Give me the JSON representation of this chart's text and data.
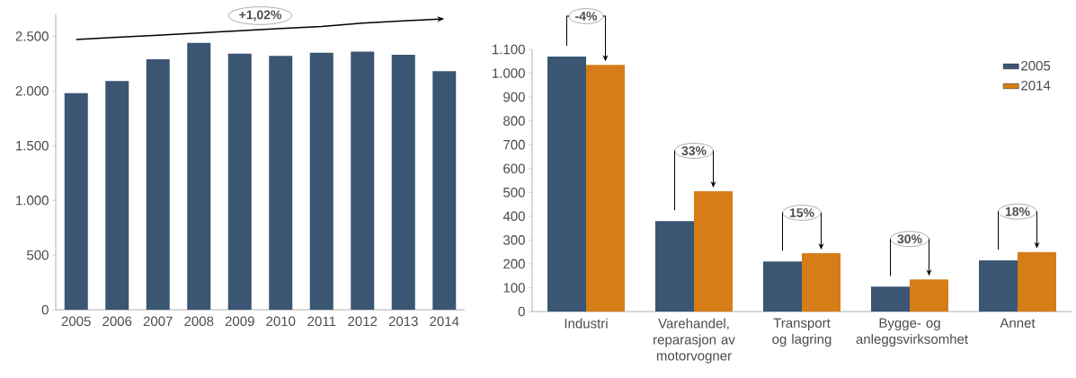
{
  "chart_data": [
    {
      "type": "bar",
      "categories": [
        "2005",
        "2006",
        "2007",
        "2008",
        "2009",
        "2010",
        "2011",
        "2012",
        "2013",
        "2014"
      ],
      "series": [
        {
          "color": "#3a5673",
          "values": [
            1980,
            2090,
            2290,
            2440,
            2340,
            2320,
            2350,
            2360,
            2330,
            2180
          ]
        },
        {
          "type": "line",
          "color": "#000000",
          "values": [
            2470,
            2490,
            2510,
            2530,
            2550,
            2570,
            2590,
            2620,
            2640,
            2660
          ]
        }
      ],
      "ylim": [
        0,
        2700
      ],
      "yticks": [
        0,
        {
          "value": 500,
          "label": "500"
        },
        {
          "value": 1000,
          "label": "1.000"
        },
        {
          "value": 1500,
          "label": "1.500"
        },
        {
          "value": 2000,
          "label": "2.000"
        },
        {
          "value": 2500,
          "label": "2.500"
        }
      ],
      "annotations": [
        "+1,02%"
      ],
      "legend": false,
      "grid": false
    },
    {
      "type": "bar",
      "categories": [
        "Industri",
        "Varehandel, reparasjon av motorvogner",
        "Transport og lagring",
        "Bygge- og anleggsvirksomhet",
        "Annet"
      ],
      "series": [
        {
          "name": "2005",
          "color": "#3a5673",
          "values": [
            1070,
            380,
            210,
            105,
            215
          ]
        },
        {
          "name": "2014",
          "color": "#d67d19",
          "values": [
            1035,
            505,
            245,
            135,
            250
          ]
        }
      ],
      "ylim": [
        0,
        1100
      ],
      "yticks": [
        0,
        100,
        200,
        300,
        400,
        500,
        600,
        700,
        800,
        900,
        {
          "value": 1000,
          "label": "1.000"
        },
        {
          "value": 1100,
          "label": "1.100"
        }
      ],
      "annotations": [
        "-4%",
        "33%",
        "15%",
        "30%",
        "18%"
      ],
      "legend": "top right",
      "grid": false
    }
  ]
}
